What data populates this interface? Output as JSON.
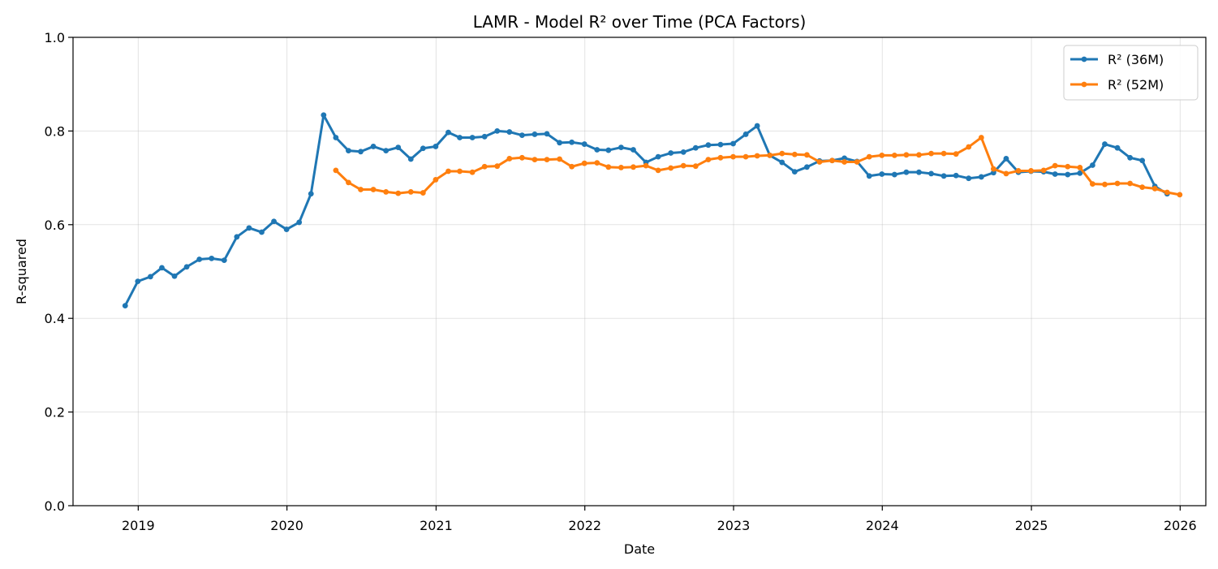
{
  "chart_data": {
    "type": "line",
    "title": "LAMR - Model R² over Time (PCA Factors)",
    "xlabel": "Date",
    "ylabel": "R-squared",
    "xlim": [
      "2018-07-25",
      "2026-03-05"
    ],
    "ylim": [
      0,
      1
    ],
    "xticks": [
      "2019",
      "2020",
      "2021",
      "2022",
      "2023",
      "2024",
      "2025",
      "2026"
    ],
    "yticks": [
      "0.0",
      "0.2",
      "0.4",
      "0.6",
      "0.8",
      "1.0"
    ],
    "grid": true,
    "legend_position": "top-right",
    "series": [
      {
        "name": "R² (36M)",
        "color": "#1f77b4",
        "start": "2018-11",
        "values": [
          0.427,
          0.479,
          0.489,
          0.508,
          0.49,
          0.51,
          0.526,
          0.528,
          0.524,
          0.574,
          0.593,
          0.584,
          0.607,
          0.59,
          0.605,
          0.666,
          0.834,
          0.786,
          0.758,
          0.756,
          0.767,
          0.758,
          0.765,
          0.74,
          0.763,
          0.767,
          0.797,
          0.786,
          0.786,
          0.788,
          0.8,
          0.798,
          0.791,
          0.793,
          0.794,
          0.775,
          0.776,
          0.772,
          0.76,
          0.759,
          0.765,
          0.76,
          0.733,
          0.745,
          0.753,
          0.755,
          0.764,
          0.77,
          0.771,
          0.773,
          0.793,
          0.811,
          0.748,
          0.733,
          0.713,
          0.723,
          0.736,
          0.737,
          0.742,
          0.735,
          0.704,
          0.708,
          0.707,
          0.712,
          0.712,
          0.709,
          0.704,
          0.705,
          0.699,
          0.702,
          0.711,
          0.741,
          0.712,
          0.714,
          0.713,
          0.708,
          0.707,
          0.71,
          0.727,
          0.772,
          0.764,
          0.743,
          0.737,
          0.682,
          0.666
        ]
      },
      {
        "name": "R² (52M)",
        "color": "#ff7f0e",
        "start": "2020-04",
        "values": [
          0.716,
          0.69,
          0.675,
          0.675,
          0.67,
          0.667,
          0.67,
          0.668,
          0.696,
          0.714,
          0.714,
          0.712,
          0.724,
          0.725,
          0.741,
          0.743,
          0.739,
          0.739,
          0.74,
          0.724,
          0.731,
          0.732,
          0.723,
          0.722,
          0.723,
          0.726,
          0.716,
          0.721,
          0.726,
          0.725,
          0.739,
          0.743,
          0.745,
          0.745,
          0.747,
          0.748,
          0.752,
          0.75,
          0.749,
          0.734,
          0.737,
          0.734,
          0.734,
          0.745,
          0.748,
          0.748,
          0.749,
          0.749,
          0.752,
          0.752,
          0.751,
          0.766,
          0.786,
          0.719,
          0.709,
          0.715,
          0.715,
          0.716,
          0.726,
          0.724,
          0.722,
          0.687,
          0.686,
          0.688,
          0.688,
          0.68,
          0.677,
          0.669,
          0.664
        ]
      }
    ]
  }
}
